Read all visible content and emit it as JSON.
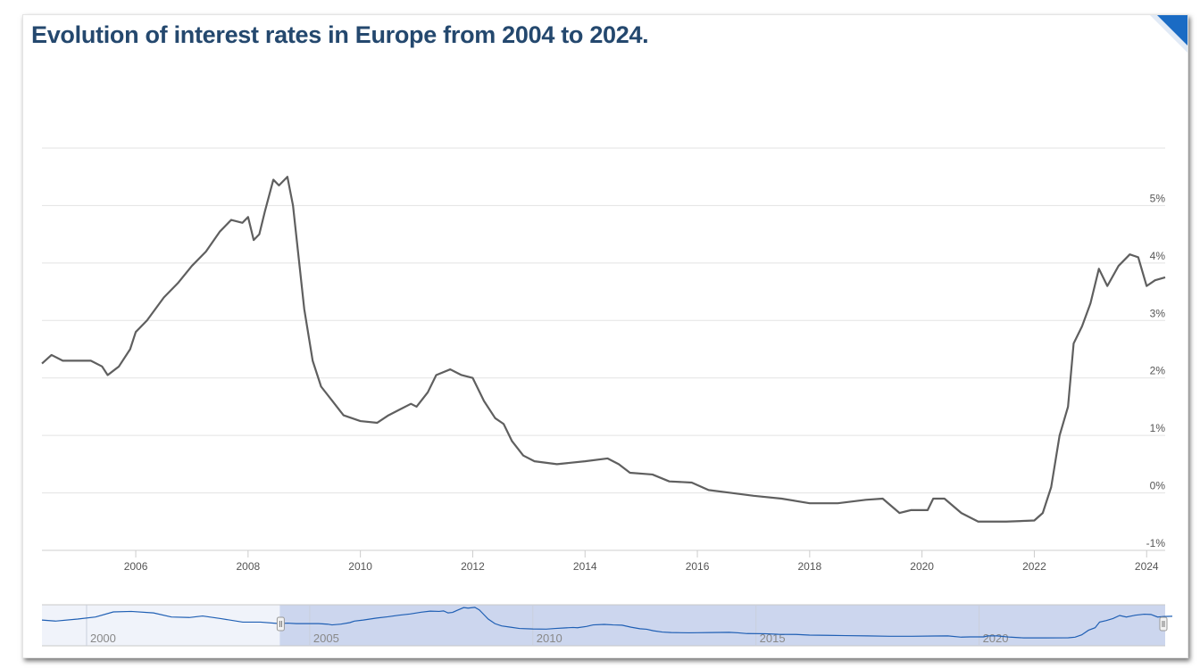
{
  "title": "Evolution of interest rates in Europe from 2004 to 2024.",
  "chart_data": {
    "type": "line",
    "title": "Evolution of interest rates in Europe from 2004 to 2024.",
    "xlabel": "",
    "ylabel": "",
    "xlim": [
      2004.33,
      2024.33
    ],
    "ylim": [
      -1,
      6
    ],
    "grid": true,
    "legend": "none",
    "line_color": "#5f5f5f",
    "x_ticks": [
      "2006",
      "2008",
      "2010",
      "2012",
      "2014",
      "2016",
      "2018",
      "2020",
      "2022",
      "2024"
    ],
    "y_ticks": [
      "5%",
      "4%",
      "3%",
      "2%",
      "1%",
      "0%",
      "-1%"
    ],
    "series": [
      {
        "x": [
          2004.33,
          2004.5,
          2004.7,
          2005.0,
          2005.2,
          2005.4,
          2005.5,
          2005.7,
          2005.9,
          2006.0,
          2006.2,
          2006.5,
          2006.75,
          2007.0,
          2007.25,
          2007.5,
          2007.7,
          2007.9,
          2008.0,
          2008.1,
          2008.2,
          2008.3,
          2008.45,
          2008.55,
          2008.7,
          2008.8,
          2008.9,
          2009.0,
          2009.15,
          2009.3,
          2009.5,
          2009.7,
          2010.0,
          2010.3,
          2010.5,
          2010.7,
          2010.9,
          2011.0,
          2011.2,
          2011.35,
          2011.6,
          2011.8,
          2012.0,
          2012.2,
          2012.4,
          2012.55,
          2012.7,
          2012.9,
          2013.1,
          2013.5,
          2013.7,
          2014.0,
          2014.4,
          2014.6,
          2014.8,
          2015.2,
          2015.5,
          2015.9,
          2016.2,
          2016.6,
          2017.0,
          2017.5,
          2018.0,
          2018.5,
          2019.0,
          2019.3,
          2019.6,
          2019.8,
          2020.1,
          2020.2,
          2020.4,
          2020.7,
          2021.0,
          2021.5,
          2022.0,
          2022.15,
          2022.3,
          2022.45,
          2022.6,
          2022.7,
          2022.85,
          2023.0,
          2023.15,
          2023.3,
          2023.5,
          2023.7,
          2023.85,
          2024.0,
          2024.15,
          2024.33
        ],
        "y": [
          2.25,
          2.4,
          2.3,
          2.3,
          2.3,
          2.2,
          2.05,
          2.2,
          2.5,
          2.8,
          3.0,
          3.4,
          3.65,
          3.95,
          4.2,
          4.55,
          4.75,
          4.7,
          4.8,
          4.4,
          4.5,
          4.9,
          5.45,
          5.35,
          5.5,
          5.0,
          4.1,
          3.2,
          2.3,
          1.85,
          1.6,
          1.35,
          1.25,
          1.22,
          1.35,
          1.45,
          1.55,
          1.5,
          1.75,
          2.05,
          2.15,
          2.05,
          2.0,
          1.6,
          1.3,
          1.2,
          0.9,
          0.65,
          0.55,
          0.5,
          0.52,
          0.55,
          0.6,
          0.5,
          0.35,
          0.32,
          0.2,
          0.18,
          0.05,
          0.0,
          -0.05,
          -0.1,
          -0.18,
          -0.18,
          -0.12,
          -0.1,
          -0.35,
          -0.3,
          -0.3,
          -0.1,
          -0.1,
          -0.35,
          -0.5,
          -0.5,
          -0.48,
          -0.35,
          0.1,
          1.0,
          1.5,
          2.6,
          2.9,
          3.3,
          3.9,
          3.6,
          3.95,
          4.15,
          4.1,
          3.6,
          3.7,
          3.75
        ]
      }
    ],
    "navigator": {
      "xlim": [
        1999.0,
        2024.17
      ],
      "x_ticks": [
        "2000",
        "2005",
        "2010",
        "2015",
        "2020"
      ],
      "selected_range": [
        2004.33,
        2024.17
      ],
      "line_color": "#1f5fb4",
      "selection_color": "#ccd6ee",
      "pre_series": {
        "x": [
          1999.0,
          1999.3,
          1999.8,
          2000.2,
          2000.6,
          2001.0,
          2001.5,
          2001.9,
          2002.3,
          2002.6,
          2003.0,
          2003.5,
          2003.9,
          2004.33
        ],
        "y": [
          3.0,
          2.8,
          3.2,
          3.6,
          4.6,
          4.7,
          4.4,
          3.6,
          3.5,
          3.8,
          3.3,
          2.6,
          2.6,
          2.3
        ]
      }
    }
  }
}
